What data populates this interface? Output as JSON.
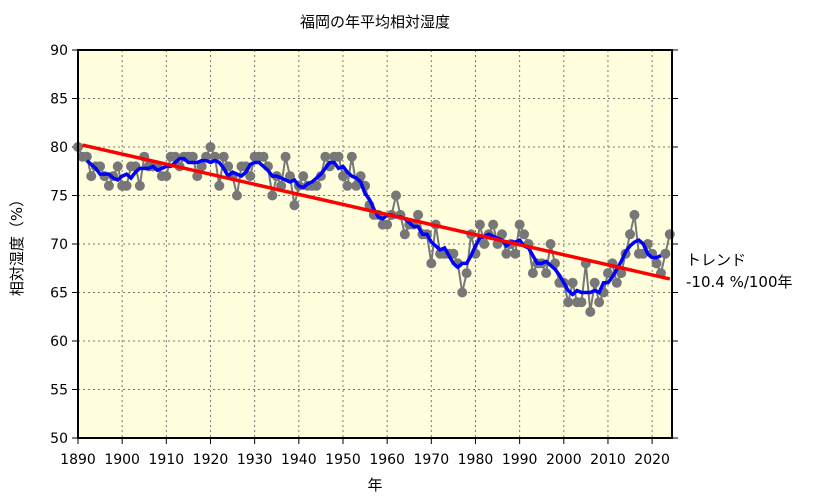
{
  "chart_data": {
    "type": "line",
    "title": "福岡の年平均相対湿度",
    "xlabel": "年",
    "ylabel": "相対湿度（%）",
    "xlim": [
      1890,
      2024.5
    ],
    "ylim": [
      50,
      90
    ],
    "xticks": [
      1890,
      1900,
      1910,
      1920,
      1930,
      1940,
      1950,
      1960,
      1970,
      1980,
      1990,
      2000,
      2010,
      2020
    ],
    "yticks": [
      50,
      55,
      60,
      65,
      70,
      75,
      80,
      85,
      90
    ],
    "grid": true,
    "background": "#ffffdd",
    "x_start": 1890,
    "annual_values": [
      80,
      79,
      79,
      77,
      78,
      78,
      77,
      76,
      77,
      78,
      76,
      76,
      78,
      78,
      76,
      79,
      78,
      78,
      78,
      77,
      77,
      79,
      79,
      78,
      79,
      79,
      79,
      77,
      78,
      79,
      80,
      79,
      76,
      79,
      78,
      77,
      75,
      78,
      78,
      77,
      79,
      79,
      79,
      78,
      75,
      77,
      76,
      79,
      77,
      74,
      76,
      77,
      76,
      76,
      76,
      77,
      79,
      78,
      79,
      79,
      77,
      76,
      79,
      76,
      77,
      76,
      74,
      73,
      73,
      72,
      72,
      73,
      75,
      73,
      71,
      72,
      72,
      73,
      71,
      71,
      68,
      72,
      69,
      69,
      69,
      69,
      68,
      65,
      67,
      71,
      69,
      72,
      70,
      71,
      72,
      70,
      71,
      69,
      70,
      69,
      72,
      71,
      70,
      67,
      68,
      68,
      67,
      70,
      68,
      66,
      66,
      64,
      66,
      64,
      64,
      68,
      63,
      66,
      64,
      65,
      67,
      68,
      66,
      67,
      69,
      71,
      73,
      69,
      69,
      70,
      69,
      68,
      67,
      69,
      71
    ],
    "series": [
      {
        "kind": "annual",
        "color": "#777777"
      },
      {
        "kind": "5-year running mean",
        "color": "#0000ff"
      },
      {
        "kind": "trend",
        "color": "#ff0000",
        "x": [
          1891,
          2024
        ],
        "y": [
          80.2,
          66.4
        ]
      }
    ],
    "annotation": {
      "line1": "トレンド",
      "line2": "-10.4 %/100年"
    }
  }
}
